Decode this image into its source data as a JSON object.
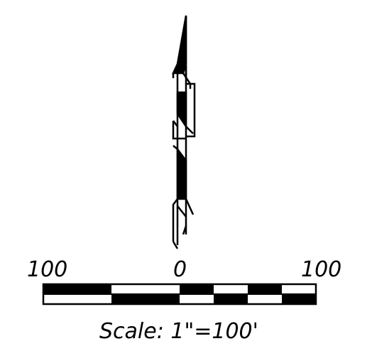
{
  "north_arrow": {
    "icon": "north-arrow-icon"
  },
  "scale_bar": {
    "labels": {
      "left": "100",
      "center": "0",
      "right": "100"
    },
    "caption": "Scale:  1\"=100'",
    "colors": {
      "dark": "#000000",
      "light": "#ffffff"
    }
  }
}
